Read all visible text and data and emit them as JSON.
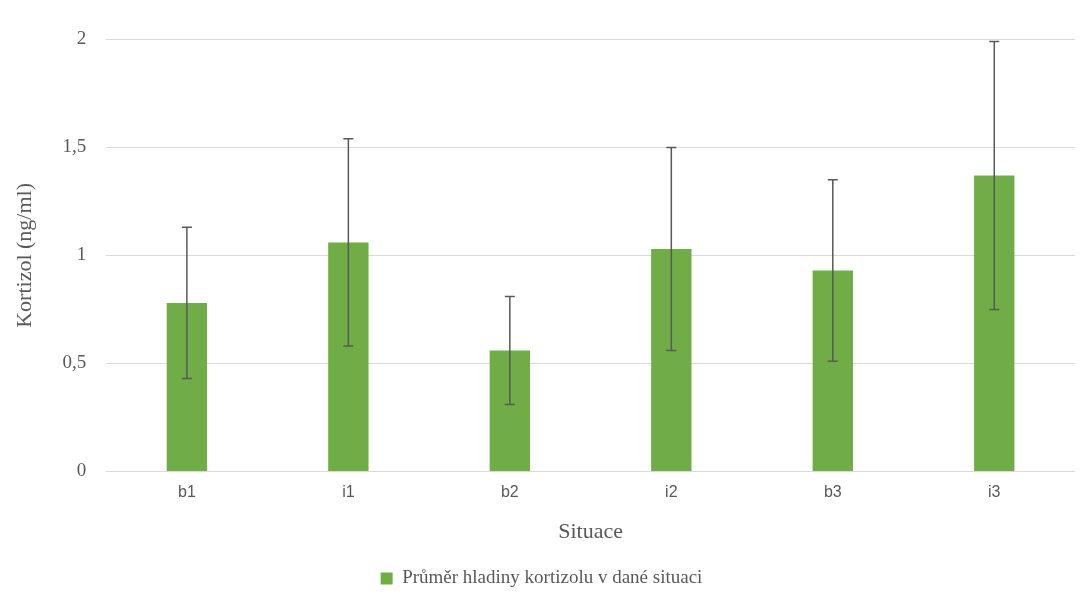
{
  "chart_data": {
    "type": "bar",
    "xlabel": "Situace",
    "ylabel": "Kortizol (ng/ml)",
    "categories": [
      "b1",
      "i1",
      "b2",
      "i2",
      "b3",
      "i3"
    ],
    "series": [
      {
        "name": "Průměr hladiny kortizolu v dané situaci",
        "color": "#70ad47",
        "values": [
          0.78,
          1.06,
          0.56,
          1.03,
          0.93,
          1.37
        ],
        "errors": [
          0.35,
          0.48,
          0.25,
          0.47,
          0.42,
          0.62
        ]
      }
    ],
    "ylim": [
      0,
      2
    ],
    "yticks": [
      0,
      {
        "value": 0.5,
        "label": "0,5"
      },
      1,
      {
        "value": 1.5,
        "label": "1,5"
      },
      2
    ],
    "grid": "y",
    "legend": "bottom"
  }
}
